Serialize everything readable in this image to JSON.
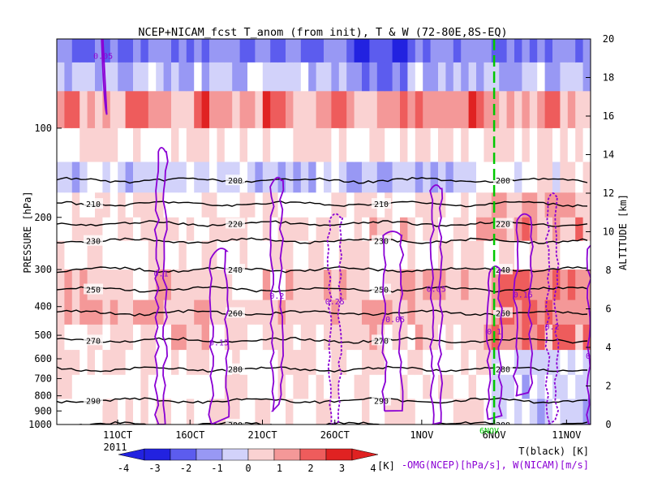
{
  "chart_data": {
    "type": "heatmap",
    "title": "NCEP+NICAM_fcst T_anom (from init), T & W  (72-80E,8S-EQ)",
    "ylabel": "PRESSURE [hPa]",
    "ylabel_right": "ALTITUDE [km]",
    "pressure_ticks": [
      "100",
      "200",
      "300",
      "400",
      "500",
      "600",
      "700",
      "800",
      "900",
      "1000"
    ],
    "altitude_ticks": [
      "0",
      "2",
      "4",
      "6",
      "8",
      "10",
      "12",
      "14",
      "16",
      "18",
      "20"
    ],
    "date_ticks": [
      "11OCT",
      "16OCT",
      "21OCT",
      "26OCT",
      "1NOV",
      "6NOV",
      "11NOV"
    ],
    "year_label": "2011",
    "init_marker_label": "6NOV",
    "colorbar_ticks": [
      "-4",
      "-3",
      "-2",
      "-1",
      "0",
      "1",
      "2",
      "3",
      "4"
    ],
    "colorbar_colors": [
      "#2222e0",
      "#5c5cee",
      "#9898f4",
      "#d2d2fa",
      "#ffffff",
      "#fad2d2",
      "#f49898",
      "#ee5c5c",
      "#e02222"
    ],
    "colorbar_unit": "[K]",
    "legend_t": "T(black) [K]",
    "legend_w": "-OMG(NCEP)[hPa/s], W(NICAM)[m/s]",
    "t_contours": [
      {
        "p": 40,
        "label": "200"
      },
      {
        "p": 150,
        "label": "200"
      },
      {
        "p": 180,
        "label": "210"
      },
      {
        "p": 210,
        "label": "220"
      },
      {
        "p": 240,
        "label": "230"
      },
      {
        "p": 300,
        "label": "240"
      },
      {
        "p": 350,
        "label": "250"
      },
      {
        "p": 420,
        "label": "260"
      },
      {
        "p": 520,
        "label": "270"
      },
      {
        "p": 650,
        "label": "280"
      },
      {
        "p": 830,
        "label": "290"
      },
      {
        "p": 1000,
        "label": "300"
      }
    ],
    "w_labels": [
      "0.05",
      "0.1",
      "0.15",
      "0.2",
      "0.25",
      "-0.05"
    ],
    "colors": {
      "temperature_contour": "#000000",
      "w_contour": "#8a00d4",
      "init_line": "#00c800"
    }
  }
}
